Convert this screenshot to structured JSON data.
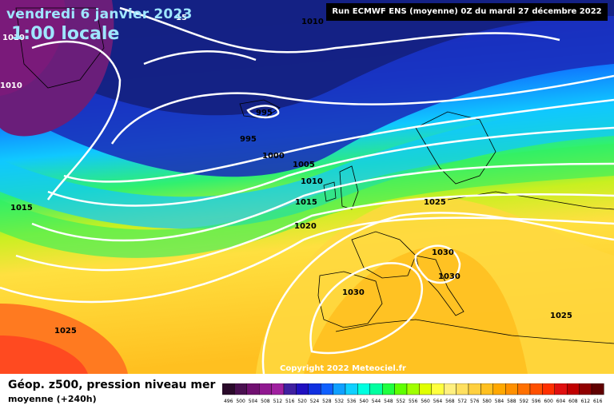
{
  "header": {
    "valid_date": "vendredi 6 janvier 2023",
    "local_time": "1:00 locale",
    "run": "Run ECMWF ENS (moyenne) 0Z du mardi 27 décembre 2022"
  },
  "copyright": "Copyright 2022 Meteociel.fr",
  "footer": {
    "title": "Géop. z500, pression niveau mer",
    "subtitle": "moyenne  (+240h)"
  },
  "isobar_labels": [
    "1010",
    "1010",
    "1010",
    "995",
    "995",
    "1000",
    "1005",
    "1010",
    "1015",
    "1020",
    "1015",
    "1025",
    "1030",
    "1030",
    "1030",
    "1025",
    "1025",
    "15"
  ],
  "colorbar": {
    "labels": [
      "496",
      "500",
      "504",
      "508",
      "512",
      "516",
      "520",
      "524",
      "528",
      "532",
      "536",
      "540",
      "544",
      "548",
      "552",
      "556",
      "560",
      "564",
      "568",
      "572",
      "576",
      "580",
      "584",
      "588",
      "592",
      "596",
      "600",
      "604",
      "608",
      "612",
      "616"
    ],
    "colors": [
      "#2a0a2a",
      "#4a1050",
      "#701070",
      "#901890",
      "#a020a0",
      "#4020a0",
      "#2010c0",
      "#1030e0",
      "#1060ff",
      "#10a0ff",
      "#10d0ff",
      "#00ffe0",
      "#00ffa0",
      "#20ff40",
      "#60ff00",
      "#a0ff00",
      "#e0ff00",
      "#ffff40",
      "#fff080",
      "#ffe060",
      "#ffd040",
      "#ffc020",
      "#ffa800",
      "#ff9000",
      "#ff7000",
      "#ff5000",
      "#ff3000",
      "#e01010",
      "#c00000",
      "#900000",
      "#600000"
    ]
  }
}
